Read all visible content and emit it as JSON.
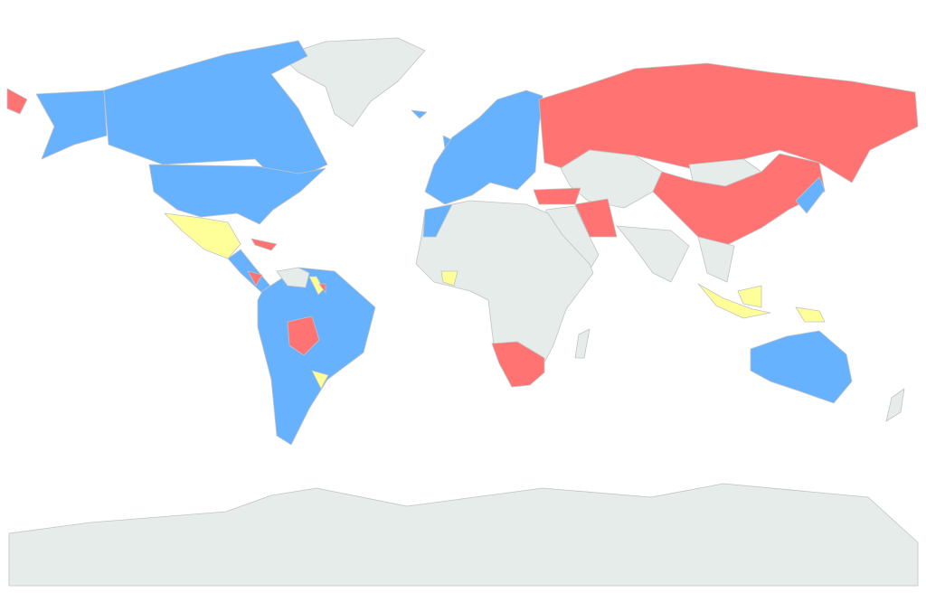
{
  "map": {
    "type": "choropleth",
    "projection": "world",
    "category_colors": {
      "blue": "#66b2ff",
      "red": "#ff7373",
      "yellow": "#ffff99",
      "none": "#e5ece9"
    },
    "border_color": "#c2c2c2",
    "regions": [
      {
        "id": "antarctica",
        "category": "none"
      },
      {
        "id": "greenland",
        "category": "none"
      },
      {
        "id": "alaska",
        "category": "blue"
      },
      {
        "id": "canada",
        "category": "blue"
      },
      {
        "id": "usa",
        "category": "blue"
      },
      {
        "id": "mexico",
        "category": "yellow"
      },
      {
        "id": "central-america",
        "category": "blue"
      },
      {
        "id": "cuba",
        "category": "red"
      },
      {
        "id": "nicaragua",
        "category": "red"
      },
      {
        "id": "south-america",
        "category": "blue"
      },
      {
        "id": "venezuela-guyana",
        "category": "none"
      },
      {
        "id": "suriname",
        "category": "yellow"
      },
      {
        "id": "french-guiana",
        "category": "red"
      },
      {
        "id": "bolivia",
        "category": "red"
      },
      {
        "id": "uruguay",
        "category": "yellow"
      },
      {
        "id": "iceland",
        "category": "blue"
      },
      {
        "id": "uk",
        "category": "blue"
      },
      {
        "id": "europe",
        "category": "blue"
      },
      {
        "id": "russia",
        "category": "red"
      },
      {
        "id": "chukotka",
        "category": "red"
      },
      {
        "id": "central-asia",
        "category": "none"
      },
      {
        "id": "mongolia",
        "category": "none"
      },
      {
        "id": "china",
        "category": "red"
      },
      {
        "id": "turkey",
        "category": "red"
      },
      {
        "id": "iran",
        "category": "red"
      },
      {
        "id": "middle-east",
        "category": "none"
      },
      {
        "id": "india",
        "category": "none"
      },
      {
        "id": "southeast-asia",
        "category": "none"
      },
      {
        "id": "japan",
        "category": "blue"
      },
      {
        "id": "africa",
        "category": "none"
      },
      {
        "id": "morocco",
        "category": "blue"
      },
      {
        "id": "ivory-coast",
        "category": "yellow"
      },
      {
        "id": "southern-africa",
        "category": "red"
      },
      {
        "id": "madagascar",
        "category": "none"
      },
      {
        "id": "sumatra-java",
        "category": "yellow"
      },
      {
        "id": "borneo",
        "category": "yellow"
      },
      {
        "id": "new-guinea",
        "category": "yellow"
      },
      {
        "id": "australia",
        "category": "blue"
      },
      {
        "id": "new-zealand",
        "category": "none"
      }
    ]
  }
}
